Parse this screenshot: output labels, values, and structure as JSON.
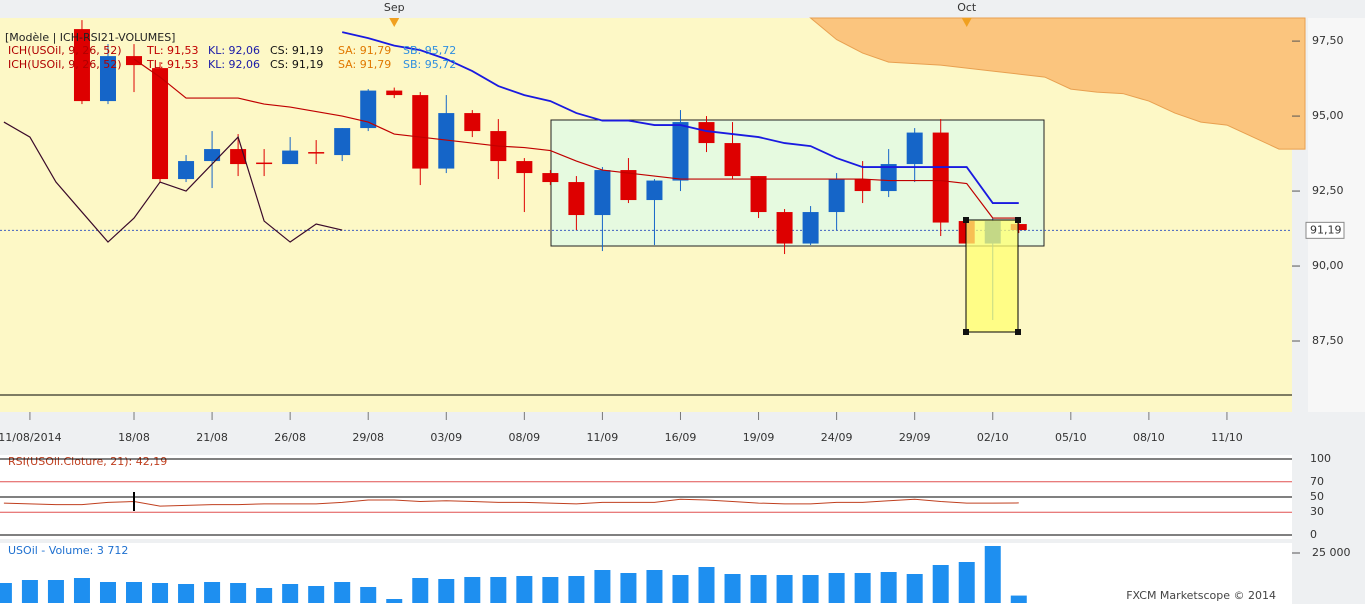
{
  "chart_data": [
    {
      "type": "candlestick",
      "header": "[Modèle | ICH-RSI21-VOLUMES]",
      "legend": [
        "ICH(USOil, 9, 26, 52)",
        "TL: 91,53",
        "KL: 92,06",
        "CS: 91,19",
        "SA: 91,79",
        "SB: 95,72"
      ],
      "legend_colors": [
        "#b00000",
        "#c00000",
        "#1a1aa8",
        "#111111",
        "#e07800",
        "#2f8fe0"
      ],
      "up_color": "#1565c8",
      "down_color": "#dd0000",
      "xlim": [
        -0.15,
        49.5
      ],
      "ylim": [
        85.7,
        98.27
      ],
      "yticks": [
        {
          "value": 97.5,
          "label": "97,50"
        },
        {
          "value": 95,
          "label": "95,00"
        },
        {
          "value": 92.5,
          "label": "92,50"
        },
        {
          "value": 90,
          "label": "90,00"
        },
        {
          "value": 87.5,
          "label": "87,50"
        }
      ],
      "xticks": [
        {
          "value": 1,
          "label": "11/08/2014"
        },
        {
          "value": 5,
          "label": "18/08"
        },
        {
          "value": 8,
          "label": "21/08"
        },
        {
          "value": 11,
          "label": "26/08"
        },
        {
          "value": 14,
          "label": "29/08"
        },
        {
          "value": 17,
          "label": "03/09"
        },
        {
          "value": 20,
          "label": "08/09"
        },
        {
          "value": 23,
          "label": "11/09"
        },
        {
          "value": 26,
          "label": "16/09"
        },
        {
          "value": 29,
          "label": "19/09"
        },
        {
          "value": 32,
          "label": "24/09"
        },
        {
          "value": 35,
          "label": "29/09"
        },
        {
          "value": 38,
          "label": "02/10"
        },
        {
          "value": 41,
          "label": "05/10"
        },
        {
          "value": 44,
          "label": "08/10"
        },
        {
          "value": 47,
          "label": "11/10"
        }
      ],
      "months": [
        {
          "value": 15,
          "label": "Sep"
        },
        {
          "value": 37,
          "label": "Oct"
        }
      ],
      "last": {
        "value": 91.19,
        "label": "91,19"
      },
      "x": [
        3,
        4,
        5,
        6,
        7,
        8,
        9,
        10,
        11,
        12,
        13,
        14,
        15,
        16,
        17,
        18,
        19,
        20,
        21,
        22,
        23,
        24,
        25,
        26,
        27,
        28,
        29,
        30,
        31,
        32,
        33,
        34,
        35,
        36,
        37,
        38,
        39
      ],
      "open": [
        97.9,
        95.5,
        97.0,
        96.6,
        92.9,
        93.5,
        93.9,
        93.45,
        93.4,
        93.8,
        93.7,
        94.6,
        95.85,
        95.7,
        93.25,
        95.1,
        94.5,
        93.5,
        93.1,
        92.8,
        91.7,
        93.2,
        92.2,
        92.85,
        94.8,
        94.1,
        93.0,
        91.8,
        90.75,
        91.8,
        92.9,
        92.5,
        93.4,
        94.45,
        91.5,
        90.75,
        91.4
      ],
      "high": [
        98.2,
        97.4,
        97.4,
        96.8,
        93.7,
        94.5,
        94.4,
        93.9,
        94.3,
        94.2,
        94.6,
        95.9,
        95.95,
        95.8,
        95.7,
        95.2,
        94.9,
        93.6,
        93.2,
        93.0,
        93.3,
        93.6,
        92.9,
        95.2,
        95.0,
        94.8,
        93.0,
        91.9,
        92.0,
        93.1,
        93.5,
        93.9,
        94.6,
        94.9,
        91.6,
        91.6,
        91.6
      ],
      "low": [
        95.4,
        95.4,
        95.8,
        92.8,
        92.8,
        92.6,
        93.0,
        93.0,
        93.4,
        93.4,
        93.5,
        94.5,
        95.6,
        92.7,
        93.1,
        94.3,
        92.9,
        91.8,
        92.7,
        91.2,
        90.5,
        92.1,
        90.7,
        92.5,
        93.8,
        92.9,
        91.6,
        90.4,
        90.7,
        91.2,
        92.1,
        92.3,
        92.8,
        91.0,
        90.8,
        88.2,
        91.1
      ],
      "close": [
        95.5,
        97.0,
        96.7,
        92.9,
        93.5,
        93.9,
        93.4,
        93.4,
        93.85,
        93.75,
        94.6,
        95.85,
        95.7,
        93.25,
        95.1,
        94.5,
        93.5,
        93.1,
        92.8,
        91.7,
        93.2,
        92.2,
        92.85,
        94.8,
        94.1,
        93.0,
        91.8,
        90.75,
        91.8,
        92.9,
        92.5,
        93.4,
        94.45,
        91.45,
        90.75,
        91.5,
        91.2
      ],
      "cloud": {
        "color": "#fbc57e",
        "x": [
          31,
          32,
          33,
          34,
          35,
          36,
          37,
          38,
          39,
          40,
          41,
          42,
          43,
          44,
          45,
          46,
          47,
          48,
          49,
          50
        ],
        "values": [
          98.3,
          97.55,
          97.1,
          96.8,
          96.75,
          96.7,
          96.6,
          96.5,
          96.4,
          96.3,
          95.9,
          95.8,
          95.75,
          95.5,
          95.1,
          94.8,
          94.7,
          94.3,
          93.9,
          93.9
        ]
      },
      "series": [
        {
          "color": "#c00000",
          "x": [
            5,
            6,
            7,
            8,
            9,
            10,
            11,
            12,
            13,
            14,
            15,
            16,
            17,
            18,
            19,
            20,
            21,
            22,
            23,
            24,
            25,
            26,
            27,
            28,
            29,
            30,
            31,
            32,
            33,
            34,
            35,
            36,
            37,
            38,
            39
          ],
          "values": [
            96.9,
            96.3,
            95.6,
            95.6,
            95.6,
            95.4,
            95.3,
            95.15,
            95.0,
            94.8,
            94.4,
            94.3,
            94.2,
            94.1,
            94.0,
            93.95,
            93.85,
            93.5,
            93.2,
            93.1,
            93.0,
            92.9,
            92.9,
            92.9,
            92.9,
            92.9,
            92.9,
            92.9,
            92.9,
            92.85,
            92.85,
            92.85,
            92.75,
            91.6,
            91.6
          ]
        },
        {
          "color": "#1a1ae0",
          "x": [
            13,
            14,
            15,
            16,
            17,
            18,
            19,
            20,
            21,
            22,
            23,
            24,
            25,
            26,
            27,
            28,
            29,
            30,
            31,
            32,
            33,
            34,
            35,
            36,
            37,
            38,
            39
          ],
          "values": [
            97.8,
            97.6,
            97.35,
            97.2,
            96.9,
            96.5,
            96.0,
            95.7,
            95.5,
            95.1,
            94.85,
            94.85,
            94.7,
            94.7,
            94.5,
            94.4,
            94.3,
            94.1,
            94.0,
            93.6,
            93.3,
            93.3,
            93.3,
            93.3,
            93.3,
            92.1,
            92.1
          ]
        },
        {
          "color": "#3a0a2a",
          "x": [
            0,
            1,
            2,
            3,
            4,
            5,
            6,
            7,
            8,
            9,
            10,
            11,
            12,
            13
          ],
          "values": [
            94.8,
            94.3,
            92.8,
            91.8,
            90.8,
            91.6,
            92.8,
            92.5,
            93.4,
            94.3,
            91.5,
            90.8,
            91.4,
            91.2
          ]
        }
      ]
    },
    {
      "type": "line",
      "title": "RSI(USOil.Cloture, 21): 42,19",
      "color": "#c04020",
      "xlim": [
        -0.15,
        49.5
      ],
      "ylim": [
        0,
        100
      ],
      "yticks": [
        100,
        70,
        50,
        30,
        0
      ],
      "ytick_colors": [
        "#000000",
        "#e05050",
        "#000000",
        "#e05050",
        "#000000"
      ],
      "x": [
        0,
        1,
        2,
        3,
        4,
        5,
        6,
        7,
        8,
        9,
        10,
        11,
        12,
        13,
        14,
        15,
        16,
        17,
        18,
        19,
        20,
        21,
        22,
        23,
        24,
        25,
        26,
        27,
        28,
        29,
        30,
        31,
        32,
        33,
        34,
        35,
        36,
        37,
        38,
        39
      ],
      "values": [
        42,
        41,
        40,
        40,
        43,
        44,
        38,
        39,
        40,
        40,
        41,
        41,
        41,
        43,
        46,
        46,
        44,
        45,
        44,
        43,
        43,
        42,
        41,
        43,
        43,
        43,
        47,
        46,
        44,
        42,
        41,
        41,
        43,
        43,
        45,
        47,
        44,
        42,
        42,
        42.19
      ]
    },
    {
      "type": "bar",
      "title": "USOil - Volume: 3 712",
      "color": "#1e8ff0",
      "xlim": [
        -0.15,
        49.5
      ],
      "ylim": [
        0,
        30000
      ],
      "yticks": [
        {
          "value": 25000,
          "label": "25 000"
        }
      ],
      "footer": "FXCM Marketscope © 2014",
      "x": [
        0,
        1,
        2,
        3,
        4,
        5,
        6,
        7,
        8,
        9,
        10,
        11,
        12,
        13,
        14,
        15,
        16,
        17,
        18,
        19,
        20,
        21,
        22,
        23,
        24,
        25,
        26,
        27,
        28,
        29,
        30,
        31,
        32,
        33,
        34,
        35,
        36,
        37,
        38,
        39
      ],
      "values": [
        10000,
        11500,
        11500,
        12500,
        10500,
        10500,
        10000,
        9500,
        10500,
        10000,
        7500,
        9500,
        8500,
        10500,
        8000,
        2000,
        12500,
        12000,
        13000,
        13000,
        13500,
        13000,
        13500,
        16500,
        15000,
        16500,
        14000,
        18000,
        14500,
        14000,
        14000,
        14000,
        15000,
        15000,
        15500,
        14500,
        19000,
        20500,
        28500,
        3712
      ]
    }
  ]
}
